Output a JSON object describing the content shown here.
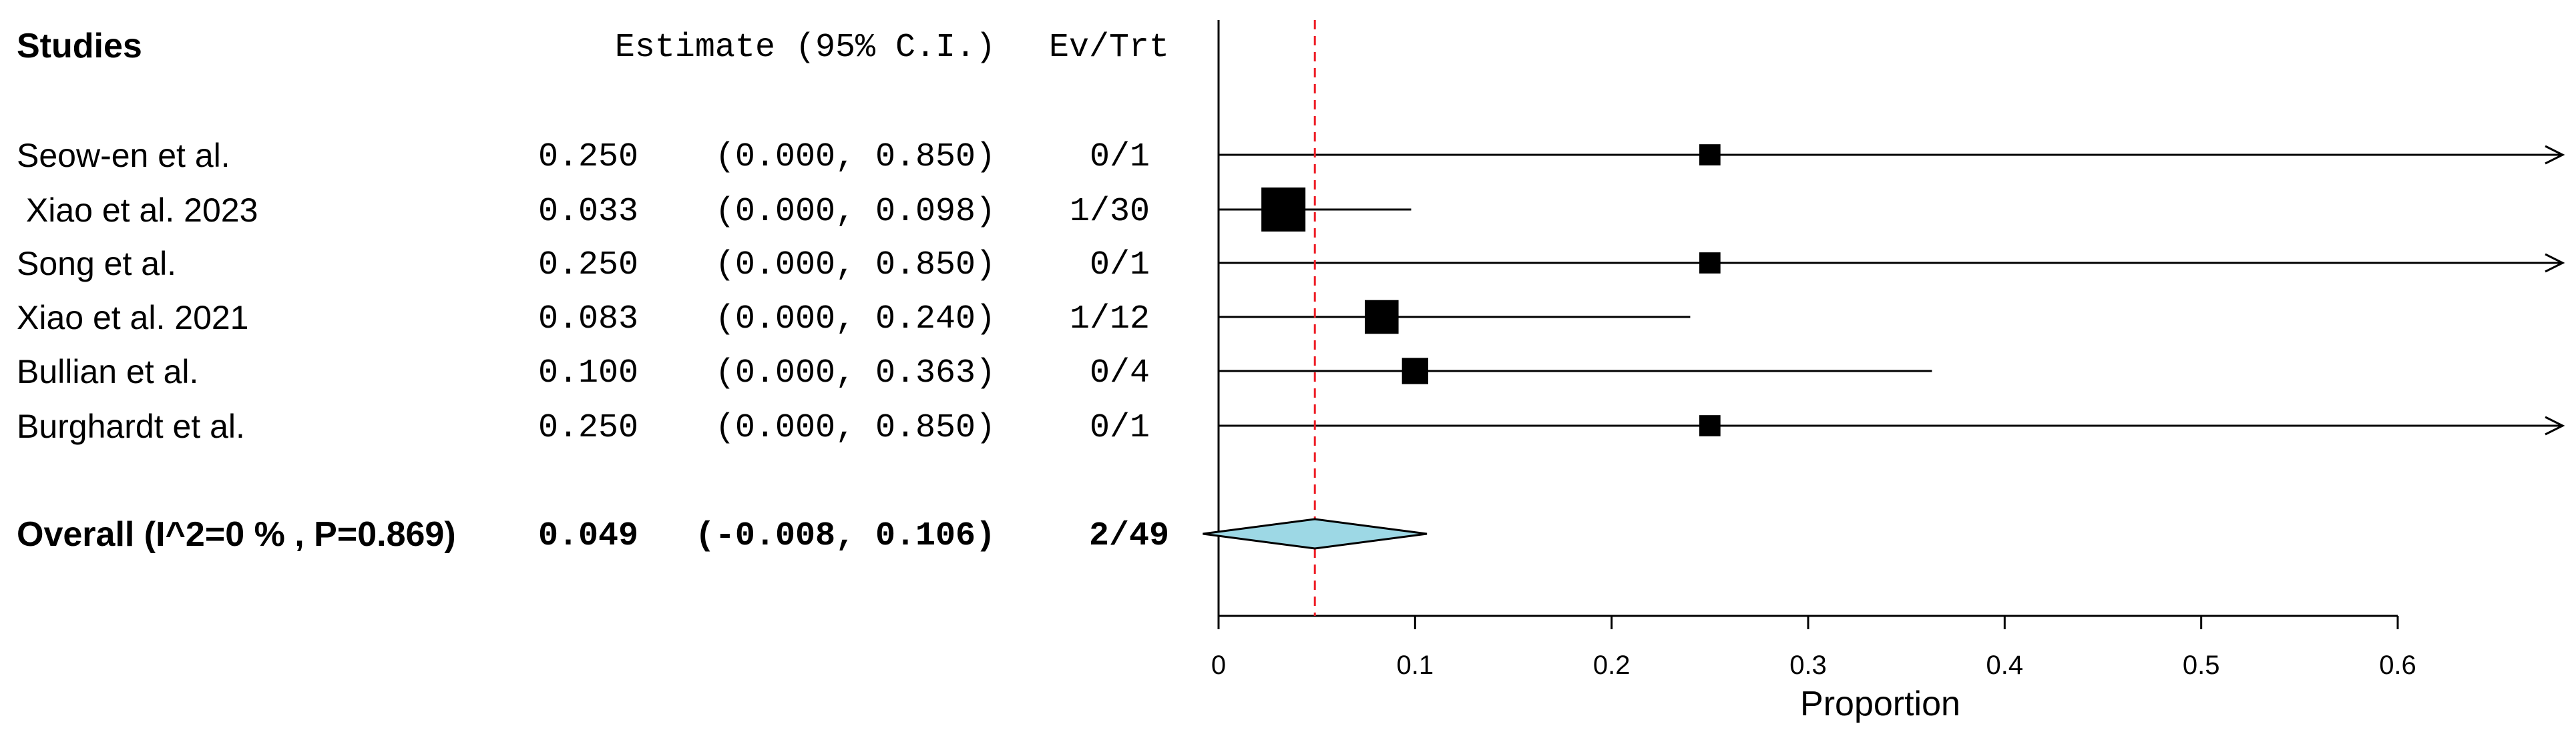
{
  "chart_data": {
    "type": "forest",
    "headers": {
      "studies": "Studies",
      "estimate": "Estimate (95% C.I.)",
      "evtrt": "Ev/Trt"
    },
    "studies": [
      {
        "label": "Seow-en et al.",
        "estimate": 0.25,
        "lower": 0.0,
        "upper": 0.85,
        "estimate_text": "0.250",
        "ci_text": "(0.000, 0.850)",
        "evtrt": "0/1",
        "weight": 1,
        "arrow": true
      },
      {
        "label": " Xiao et al. 2023",
        "estimate": 0.033,
        "lower": 0.0,
        "upper": 0.098,
        "estimate_text": "0.033",
        "ci_text": "(0.000, 0.098)",
        "evtrt": "1/30",
        "weight": 30,
        "arrow": false
      },
      {
        "label": "Song et al.",
        "estimate": 0.25,
        "lower": 0.0,
        "upper": 0.85,
        "estimate_text": "0.250",
        "ci_text": "(0.000, 0.850)",
        "evtrt": "0/1",
        "weight": 1,
        "arrow": true
      },
      {
        "label": "Xiao et al. 2021",
        "estimate": 0.083,
        "lower": 0.0,
        "upper": 0.24,
        "estimate_text": "0.083",
        "ci_text": "(0.000, 0.240)",
        "evtrt": "1/12",
        "weight": 12,
        "arrow": false
      },
      {
        "label": "Bullian et al.",
        "estimate": 0.1,
        "lower": 0.0,
        "upper": 0.363,
        "estimate_text": "0.100",
        "ci_text": "(0.000, 0.363)",
        "evtrt": "0/4",
        "weight": 4,
        "arrow": false
      },
      {
        "label": "Burghardt et al.",
        "estimate": 0.25,
        "lower": 0.0,
        "upper": 0.85,
        "estimate_text": "0.250",
        "ci_text": "(0.000, 0.850)",
        "evtrt": "0/1",
        "weight": 1,
        "arrow": true
      }
    ],
    "overall": {
      "label": "Overall (I^2=0 % , P=0.869)",
      "estimate": 0.049,
      "lower": -0.008,
      "upper": 0.106,
      "estimate_text": "0.049",
      "ci_text": "(-0.008, 0.106)",
      "evtrt": "2/49"
    },
    "xaxis": {
      "label": "Proportion",
      "range": [
        0,
        0.6
      ],
      "ticks": [
        0,
        0.1,
        0.2,
        0.3,
        0.4,
        0.5,
        0.6
      ],
      "tick_labels": [
        "0",
        "0.1",
        "0.2",
        "0.3",
        "0.4",
        "0.5",
        "0.6"
      ]
    },
    "reference_line": 0.049,
    "colors": {
      "diamond_fill": "#9dd8e5",
      "reference_line": "#ee1c25",
      "ink": "#000000"
    }
  }
}
